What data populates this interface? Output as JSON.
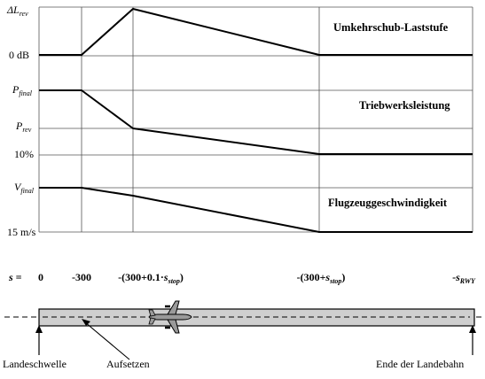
{
  "panels": [
    {
      "title": "Umkehrschub-Laststufe",
      "y_labels": {
        "top": {
          "sym": "ΔL",
          "sub": "rev"
        },
        "bottom": "0 dB"
      }
    },
    {
      "title": "Triebwerksleistung",
      "y_labels": {
        "top": {
          "sym": "P",
          "sub": "final"
        },
        "mid": {
          "sym": "P",
          "sub": "rev"
        },
        "bottom": "10%"
      }
    },
    {
      "title": "Flugzeuggeschwindigkeit",
      "y_labels": {
        "top": {
          "sym": "V",
          "sub": "final"
        },
        "bottom": "15 m/s"
      }
    }
  ],
  "distance_axis": {
    "label": "s =",
    "ticks": [
      {
        "pre": "0"
      },
      {
        "pre": "-300"
      },
      {
        "pre": "-(300+0.1·",
        "var": "s",
        "sub": "stop",
        "post": ")"
      },
      {
        "pre": "-(300+",
        "var": "s",
        "sub": "stop",
        "post": ")"
      },
      {
        "pre": "-",
        "var": "s",
        "sub": "RWY",
        "post": ""
      }
    ]
  },
  "runway": {
    "labels": {
      "threshold": "Landeschwelle",
      "touchdown": "Aufsetzen",
      "runway_end": "Ende der Landebahn"
    }
  },
  "colors": {
    "line": "#000000",
    "grid": "#555555",
    "runway_fill": "#cfcfcf"
  },
  "icons": [
    "airplane-icon"
  ]
}
